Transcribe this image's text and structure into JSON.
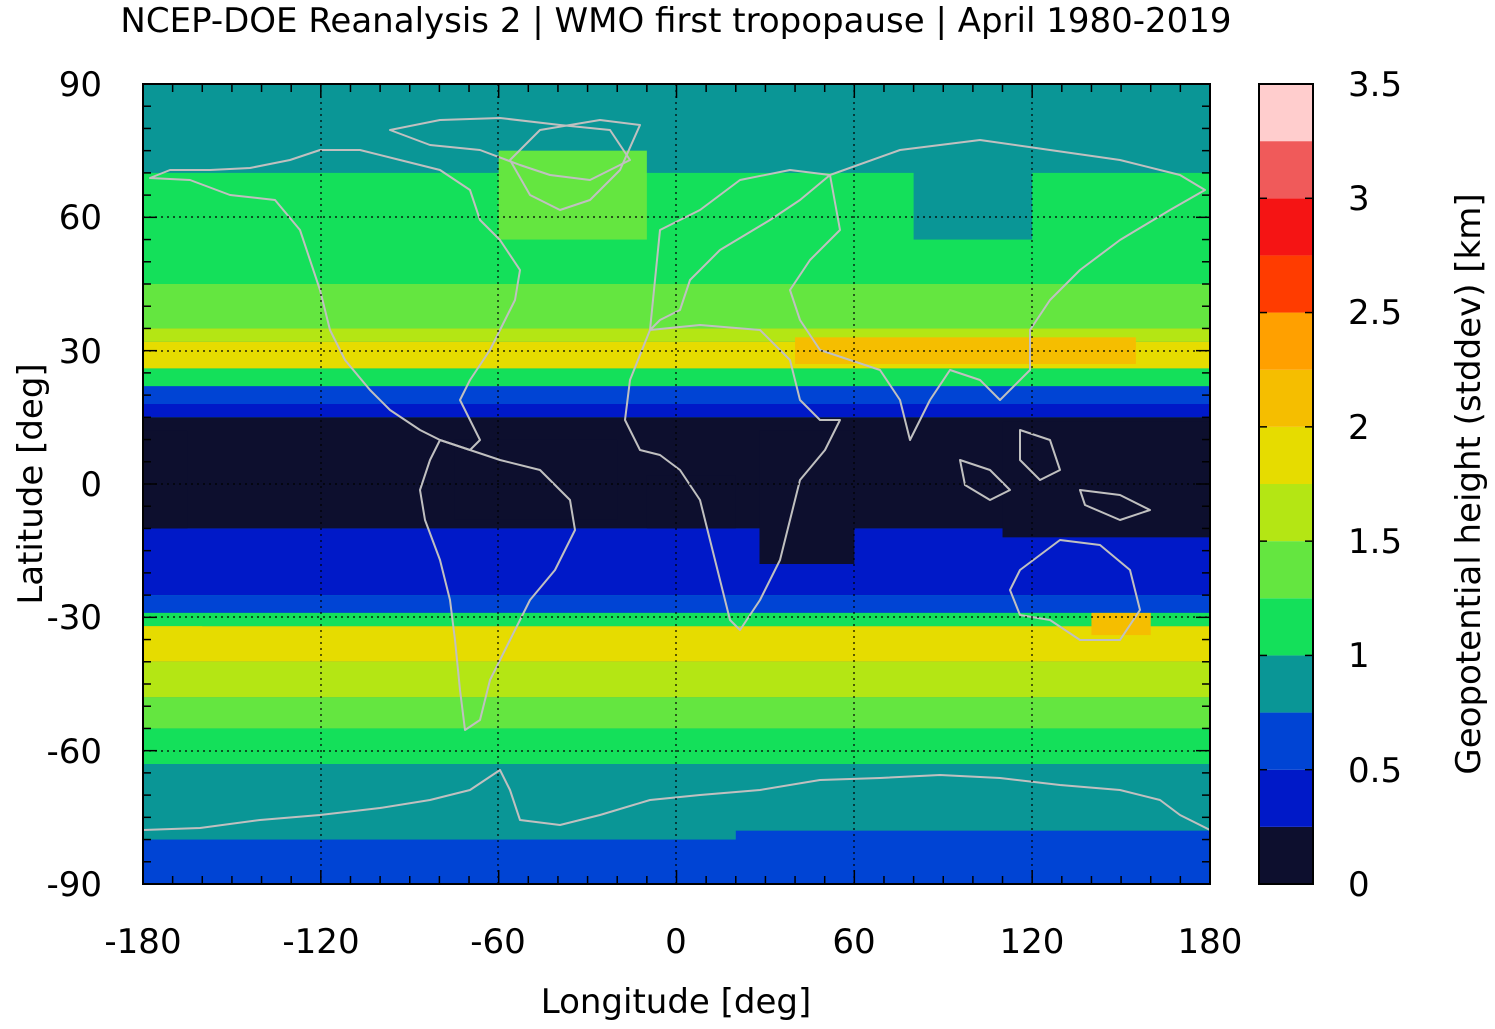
{
  "title": "NCEP-DOE Reanalysis 2 | WMO first tropopause | April 1980-2019",
  "chart_data": {
    "type": "heatmap",
    "title": "NCEP-DOE Reanalysis 2 | WMO first tropopause | April 1980-2019",
    "xlabel": "Longitude [deg]",
    "ylabel": "Latitude [deg]",
    "xlim": [
      -180,
      180
    ],
    "ylim": [
      -90,
      90
    ],
    "x_ticks": [
      "-180",
      "-120",
      "-60",
      "0",
      "60",
      "120",
      "180"
    ],
    "x_tick_values": [
      -180,
      -120,
      -60,
      0,
      60,
      120,
      180
    ],
    "y_ticks": [
      "90",
      "60",
      "30",
      "0",
      "-30",
      "-60",
      "-90"
    ],
    "y_tick_values": [
      90,
      60,
      30,
      0,
      -30,
      -60,
      -90
    ],
    "grid": true,
    "colorbar": {
      "label": "Geopotential height (stddev) [km]",
      "range": [
        0,
        3.5
      ],
      "ticks": [
        "0",
        "0.5",
        "1",
        "1.5",
        "2",
        "2.5",
        "3",
        "3.5"
      ],
      "tick_values": [
        0,
        0.5,
        1,
        1.5,
        2,
        2.5,
        3,
        3.5
      ],
      "levels": [
        0,
        0.25,
        0.5,
        0.75,
        1.0,
        1.25,
        1.5,
        1.75,
        2.0,
        2.25,
        2.5,
        2.75,
        3.0,
        3.25,
        3.5
      ],
      "colors": [
        "#0d0f2e",
        "#0019c8",
        "#0044d4",
        "#0a9696",
        "#14e05a",
        "#64e640",
        "#b4e614",
        "#e6dc00",
        "#f5be00",
        "#ffa000",
        "#ff3c00",
        "#f51414",
        "#f05a5a",
        "#ffcdcd"
      ]
    },
    "latitude_bands": [
      {
        "lat_range": [
          85,
          90
        ],
        "value": 0.9
      },
      {
        "lat_range": [
          70,
          85
        ],
        "value": 0.95
      },
      {
        "lat_range": [
          45,
          70
        ],
        "value": 1.2
      },
      {
        "lat_range": [
          35,
          45
        ],
        "value": 1.4
      },
      {
        "lat_range": [
          32,
          35
        ],
        "value": 1.6
      },
      {
        "lat_range": [
          26,
          32
        ],
        "value": 1.85
      },
      {
        "lat_range": [
          22,
          26
        ],
        "value": 1.1
      },
      {
        "lat_range": [
          18,
          22
        ],
        "value": 0.6
      },
      {
        "lat_range": [
          15,
          18
        ],
        "value": 0.4
      },
      {
        "lat_range": [
          -10,
          15
        ],
        "value": 0.2
      },
      {
        "lat_range": [
          -25,
          -10
        ],
        "value": 0.35
      },
      {
        "lat_range": [
          -29,
          -25
        ],
        "value": 0.6
      },
      {
        "lat_range": [
          -32,
          -29
        ],
        "value": 1.1
      },
      {
        "lat_range": [
          -40,
          -32
        ],
        "value": 1.8
      },
      {
        "lat_range": [
          -48,
          -40
        ],
        "value": 1.6
      },
      {
        "lat_range": [
          -55,
          -48
        ],
        "value": 1.35
      },
      {
        "lat_range": [
          -63,
          -55
        ],
        "value": 1.1
      },
      {
        "lat_range": [
          -80,
          -63
        ],
        "value": 0.9
      },
      {
        "lat_range": [
          -90,
          -80
        ],
        "value": 0.6
      }
    ],
    "regional_features": [
      {
        "name": "tropical-core-pacific",
        "lon": [
          -180,
          -165
        ],
        "lat": [
          -10,
          12
        ],
        "value": 0.1
      },
      {
        "name": "tropical-core-atlantic-americas",
        "lon": [
          -75,
          -20
        ],
        "lat": [
          -8,
          10
        ],
        "value": 0.1
      },
      {
        "name": "tropical-core-africa-west",
        "lon": [
          -10,
          20
        ],
        "lat": [
          -10,
          2
        ],
        "value": 0.1
      },
      {
        "name": "tropical-core-africa-east",
        "lon": [
          28,
          60
        ],
        "lat": [
          -18,
          12
        ],
        "value": 0.1
      },
      {
        "name": "tropical-core-west-pacific",
        "lon": [
          110,
          180
        ],
        "lat": [
          -12,
          14
        ],
        "value": 0.1
      },
      {
        "name": "subtropical-jet-asia",
        "lon": [
          40,
          155
        ],
        "lat": [
          27,
          33
        ],
        "value": 2.1
      },
      {
        "name": "subtropical-jet-south-atlantic",
        "lon": [
          -180,
          -160
        ],
        "lat": [
          -38,
          -32
        ],
        "value": 1.9
      },
      {
        "name": "subtropical-jet-australia",
        "lon": [
          140,
          160
        ],
        "lat": [
          -34,
          -29
        ],
        "value": 2.1
      },
      {
        "name": "north-atlantic-low",
        "lon": [
          -60,
          -10
        ],
        "lat": [
          55,
          75
        ],
        "value": 1.35
      },
      {
        "name": "siberia-low",
        "lon": [
          80,
          120
        ],
        "lat": [
          55,
          75
        ],
        "value": 0.9
      },
      {
        "name": "antarctic-plateau",
        "lon": [
          20,
          180
        ],
        "lat": [
          -90,
          -78
        ],
        "value": 0.55
      }
    ]
  }
}
